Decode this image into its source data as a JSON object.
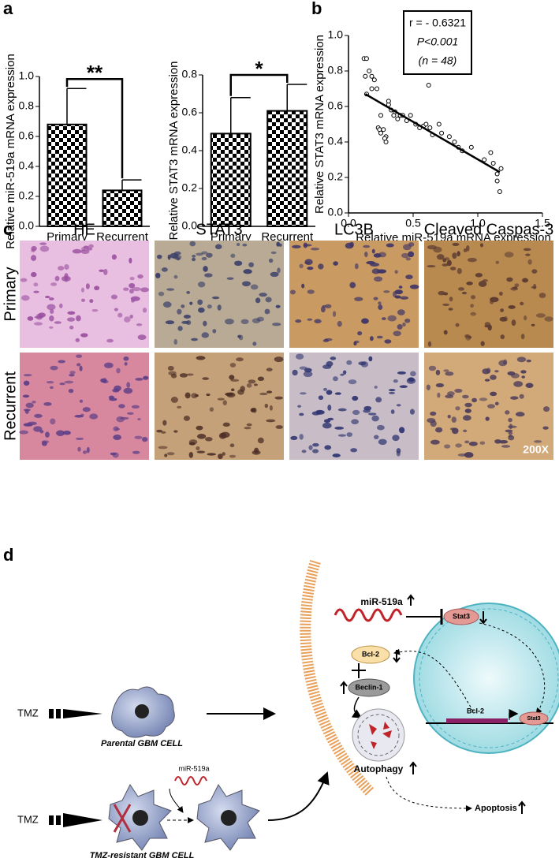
{
  "panels": [
    "a",
    "b",
    "c",
    "d"
  ],
  "chart_data": [
    {
      "type": "bar",
      "categories": [
        "Primary",
        "Recurrent"
      ],
      "values": [
        0.68,
        0.24
      ],
      "errors": [
        0.24,
        0.07
      ],
      "ylim": [
        0,
        1
      ],
      "yticks": [
        {
          "value": 0,
          "label": "0.0"
        },
        0.2,
        0.4,
        0.6,
        0.8,
        {
          "value": 1,
          "label": "1.0"
        }
      ],
      "ylabel": "Relative miR-519a mRNA expression",
      "significance": "**"
    },
    {
      "type": "bar",
      "categories": [
        "Primary",
        "Recurrent"
      ],
      "values": [
        0.49,
        0.61
      ],
      "errors": [
        0.19,
        0.14
      ],
      "ylim": [
        0,
        0.8
      ],
      "yticks": [
        {
          "value": 0,
          "label": "0.0"
        },
        0.2,
        0.4,
        0.6,
        0.8
      ],
      "ylabel": "Relative STAT3 mRNA expression",
      "significance": "*"
    },
    {
      "type": "scatter",
      "x": [
        0.12,
        0.14,
        0.13,
        0.16,
        0.18,
        0.2,
        0.18,
        0.14,
        0.22,
        0.25,
        0.23,
        0.24,
        0.25,
        0.27,
        0.29,
        0.29,
        0.31,
        0.31,
        0.33,
        0.35,
        0.36,
        0.38,
        0.4,
        0.42,
        0.45,
        0.48,
        0.52,
        0.55,
        0.58,
        0.6,
        0.62,
        0.63,
        0.65,
        0.7,
        0.72,
        0.78,
        0.82,
        0.85,
        0.88,
        0.95,
        1.05,
        1.1,
        1.12,
        1.15,
        1.15,
        1.18,
        1.17,
        0.28
      ],
      "values": [
        0.87,
        0.87,
        0.77,
        0.8,
        0.77,
        0.75,
        0.7,
        0.67,
        0.7,
        0.55,
        0.48,
        0.47,
        0.45,
        0.47,
        0.43,
        0.4,
        0.61,
        0.63,
        0.58,
        0.55,
        0.57,
        0.53,
        0.55,
        0.55,
        0.52,
        0.55,
        0.5,
        0.48,
        0.49,
        0.5,
        0.72,
        0.48,
        0.44,
        0.5,
        0.45,
        0.43,
        0.4,
        0.37,
        0.35,
        0.37,
        0.3,
        0.34,
        0.28,
        0.22,
        0.18,
        0.25,
        0.12,
        0.42
      ],
      "fit_line": {
        "x": [
          0.13,
          1.17
        ],
        "values": [
          0.67,
          0.23
        ]
      },
      "xlim": [
        0,
        1.5
      ],
      "xticks": [
        {
          "value": 0,
          "label": "0.0"
        },
        0.5,
        {
          "value": 1,
          "label": "1.0"
        },
        1.5
      ],
      "ylim": [
        0,
        1
      ],
      "yticks": [
        {
          "value": 0,
          "label": "0.0"
        },
        0.2,
        0.4,
        0.6,
        0.8,
        {
          "value": 1,
          "label": "1.0"
        }
      ],
      "xlabel": "Relative miR-519a mRNA expression",
      "ylabel": "Relative STAT3 mRNA expression",
      "annotations": [
        "r = - 0.6321",
        "P<0.001",
        "(n = 48)"
      ]
    }
  ],
  "panel_c": {
    "columns": [
      "HE",
      "STAT3",
      "LC3B",
      "Cleaved Caspas-3"
    ],
    "rows": [
      "Primary",
      "Recurrent"
    ],
    "magnification": "200X"
  },
  "panel_d": {
    "tmz": "TMZ",
    "parental": "Parental GBM CELL",
    "resistant": "TMZ-resistant GBM CELL",
    "mirna_small": "miR-519a",
    "mirna": "miR-519a",
    "stat3": "Stat3",
    "bcl2": "Bcl-2",
    "beclin": "Beclin-1",
    "autophagy": "Autophagy",
    "apoptosis": "Apoptosis",
    "nuc_bcl2": "Bcl-2",
    "nuc_stat3": "Stat3"
  }
}
